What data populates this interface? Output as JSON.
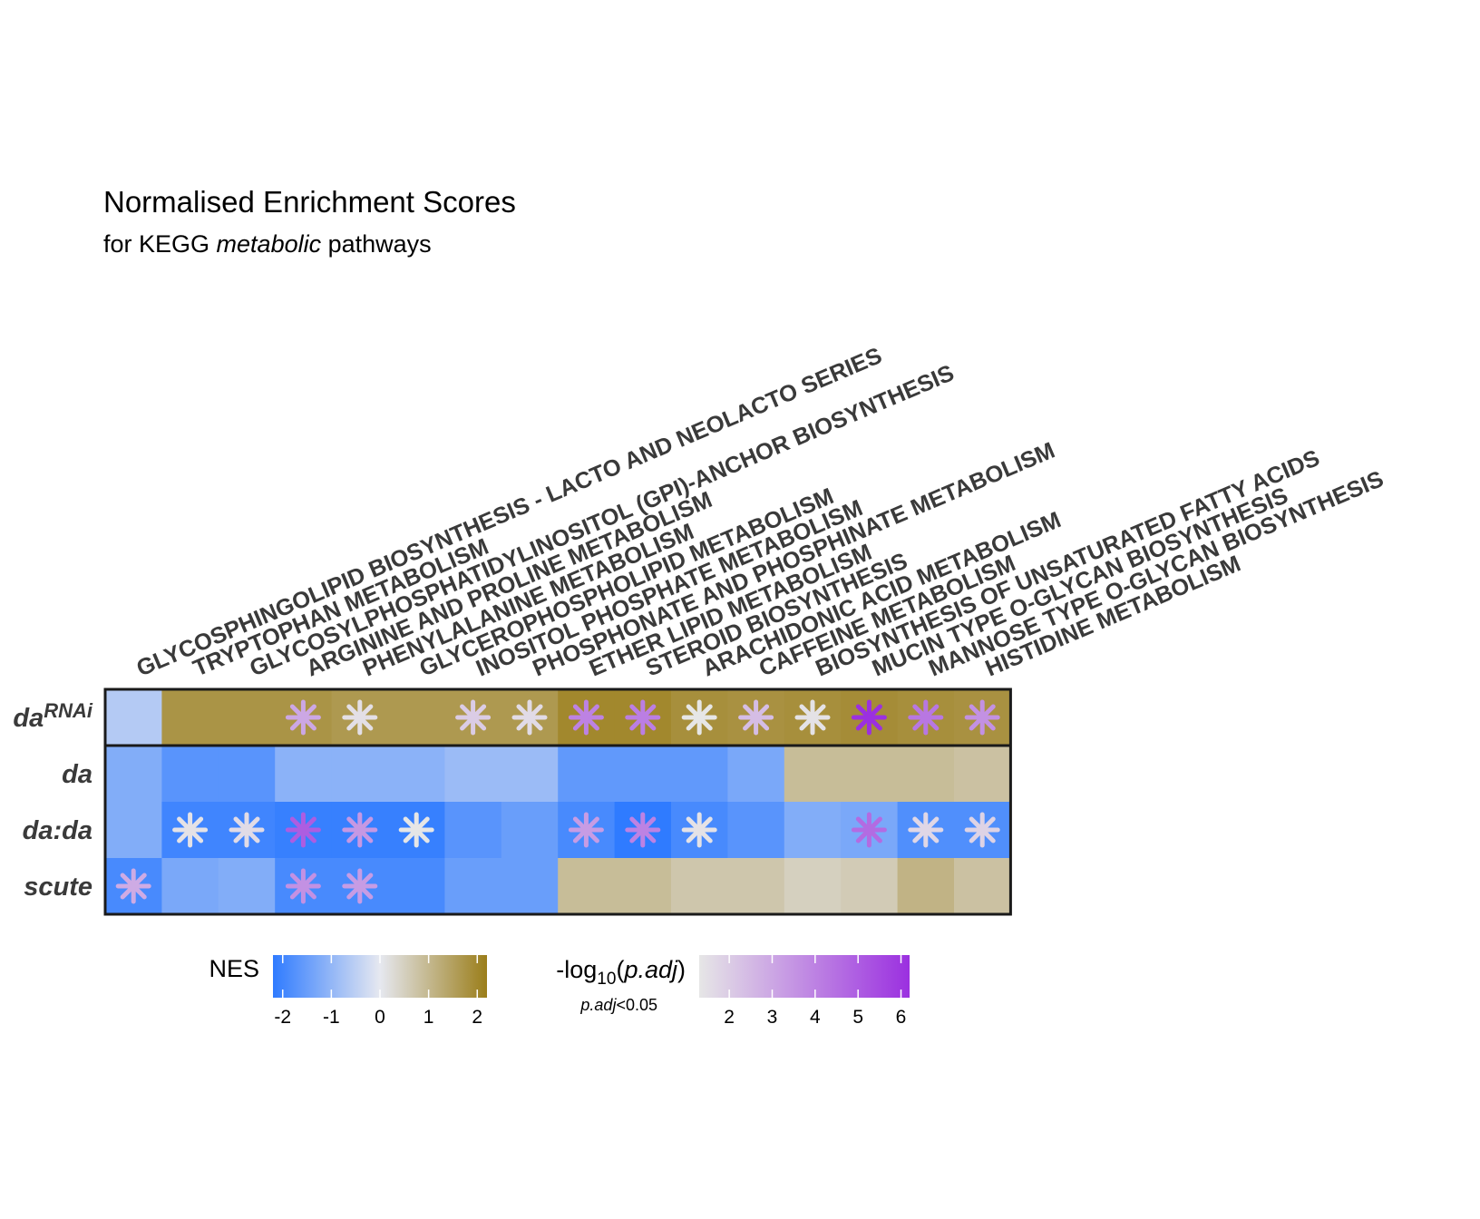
{
  "header": {
    "title": "Normalised Enrichment Scores",
    "subtitle_pre": "for KEGG ",
    "subtitle_italic": "metabolic",
    "subtitle_post": " pathways"
  },
  "colors": {
    "nes_low": "#2f7bff",
    "nes_mid": "#e6e8f0",
    "nes_high": "#9b7e1a",
    "sig_low": "#e6e6e6",
    "sig_high": "#9b30e0"
  },
  "legend": {
    "nes": {
      "title": "NES",
      "ticks": [
        "-2",
        "-1",
        "0",
        "1",
        "2"
      ],
      "range": [
        -2.2,
        2.2
      ]
    },
    "sig": {
      "title_pre": "-log",
      "title_sub": "10",
      "title_paren_open": "(",
      "title_italic": "p.adj",
      "title_paren_close": ")",
      "note_italic": "p.adj",
      "note_rest": "<0.05",
      "ticks": [
        "2",
        "3",
        "4",
        "5",
        "6"
      ],
      "range": [
        1.3,
        6.2
      ]
    }
  },
  "chart_data": {
    "type": "heatmap",
    "title": "Normalised Enrichment Scores",
    "subtitle": "for KEGG metabolic pathways",
    "columns": [
      "GLYCOSPHINGOLIPID BIOSYNTHESIS - LACTO AND NEOLACTO SERIES",
      "TRYPTOPHAN METABOLISM",
      "GLYCOSYLPHOSPHATIDYLINOSITOL (GPI)-ANCHOR BIOSYNTHESIS",
      "ARGININE AND PROLINE METABOLISM",
      "PHENYLALANINE METABOLISM",
      "GLYCEROPHOSPHOLIPID METABOLISM",
      "INOSITOL PHOSPHATE METABOLISM",
      "PHOSPHONATE AND PHOSPHINATE METABOLISM",
      "ETHER LIPID METABOLISM",
      "STEROID BIOSYNTHESIS",
      "ARACHIDONIC ACID METABOLISM",
      "CAFFEINE METABOLISM",
      "BIOSYNTHESIS OF UNSATURATED FATTY ACIDS",
      "MUCIN TYPE O-GLYCAN BIOSYNTHESIS",
      "MANNOSE TYPE O-GLYCAN BIOSYNTHESIS",
      "HISTIDINE METABOLISM"
    ],
    "rows": [
      {
        "name": "da",
        "sup": "RNAi",
        "nes": [
          -0.6,
          1.75,
          1.75,
          1.75,
          1.65,
          1.65,
          1.65,
          1.65,
          2.0,
          2.0,
          1.85,
          1.8,
          1.85,
          1.9,
          1.85,
          1.8
        ],
        "neglog10_padj": [
          null,
          null,
          null,
          3.0,
          1.5,
          null,
          2.0,
          1.6,
          4.0,
          4.1,
          1.3,
          2.4,
          1.4,
          6.2,
          4.3,
          3.6
        ]
      },
      {
        "name": "da",
        "sup": "",
        "nes": [
          -1.2,
          -1.7,
          -1.7,
          -1.1,
          -1.1,
          -1.1,
          -0.9,
          -0.9,
          -1.6,
          -1.6,
          -1.6,
          -1.3,
          0.9,
          0.9,
          0.9,
          0.8
        ],
        "neglog10_padj": [
          null,
          null,
          null,
          null,
          null,
          null,
          null,
          null,
          null,
          null,
          null,
          null,
          null,
          null,
          null,
          null
        ]
      },
      {
        "name": "da:da",
        "sup": "",
        "nes": [
          -1.2,
          -2.0,
          -2.0,
          -2.1,
          -2.1,
          -2.1,
          -1.7,
          -1.5,
          -1.9,
          -2.2,
          -1.9,
          -1.7,
          -1.2,
          -1.3,
          -1.8,
          -1.8
        ],
        "neglog10_padj": [
          null,
          1.4,
          1.6,
          5.0,
          3.4,
          1.3,
          null,
          null,
          3.3,
          4.0,
          1.4,
          null,
          null,
          4.6,
          1.7,
          1.8
        ]
      },
      {
        "name": "scute",
        "sup": "",
        "nes": [
          -1.9,
          -1.3,
          -1.2,
          -1.9,
          -1.9,
          -1.9,
          -1.5,
          -1.5,
          0.9,
          0.9,
          0.7,
          0.7,
          0.5,
          0.6,
          1.1,
          0.8
        ],
        "neglog10_padj": [
          2.9,
          null,
          null,
          3.6,
          3.3,
          null,
          null,
          null,
          null,
          null,
          null,
          null,
          null,
          null,
          null,
          null
        ]
      }
    ],
    "legend_placement": "bottom"
  }
}
